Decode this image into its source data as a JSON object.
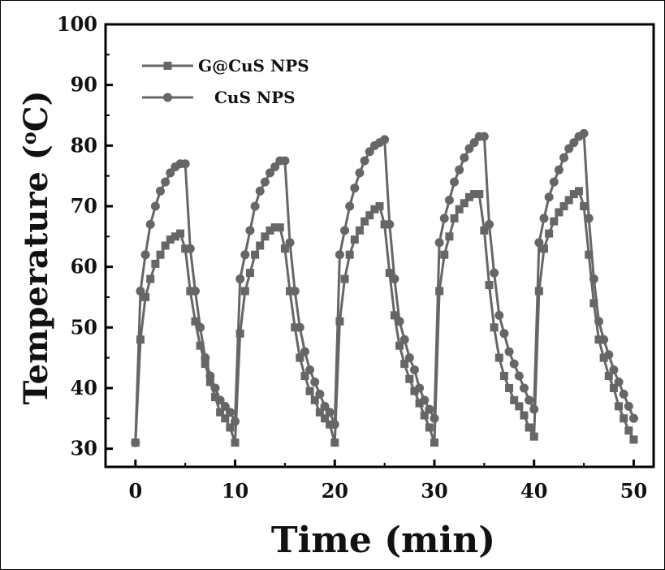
{
  "chart_data": {
    "type": "line",
    "title": "",
    "xlabel": "Time (min)",
    "ylabel_main": "Temperature (",
    "ylabel_sup": "o",
    "ylabel_tail": "C)",
    "xlim": [
      -3,
      52
    ],
    "ylim": [
      27,
      100
    ],
    "xticks": [
      0,
      10,
      20,
      30,
      40,
      50
    ],
    "yticks": [
      30,
      40,
      50,
      60,
      70,
      80,
      90,
      100
    ],
    "grid": false,
    "legend_position": "top-left",
    "series": [
      {
        "name": "G@CuS NPS",
        "marker": "square",
        "color": "#666666",
        "x": [
          0,
          0.5,
          1,
          1.5,
          2,
          2.5,
          3,
          3.5,
          4,
          4.5,
          5,
          5.5,
          6,
          6.5,
          7,
          7.5,
          8,
          8.5,
          9,
          9.5,
          10,
          10.5,
          11,
          11.5,
          12,
          12.5,
          13,
          13.5,
          14,
          14.5,
          15,
          15.5,
          16,
          16.5,
          17,
          17.5,
          18,
          18.5,
          19,
          19.5,
          20,
          20.5,
          21,
          21.5,
          22,
          22.5,
          23,
          23.5,
          24,
          24.5,
          25,
          25.5,
          26,
          26.5,
          27,
          27.5,
          28,
          28.5,
          29,
          29.5,
          30,
          30.5,
          31,
          31.5,
          32,
          32.5,
          33,
          33.5,
          34,
          34.5,
          35,
          35.5,
          36,
          36.5,
          37,
          37.5,
          38,
          38.5,
          39,
          39.5,
          40,
          40.5,
          41,
          41.5,
          42,
          42.5,
          43,
          43.5,
          44,
          44.5,
          45,
          45.5,
          46,
          46.5,
          47,
          47.5,
          48,
          48.5,
          49,
          49.5,
          50
        ],
        "y": [
          31,
          48,
          55,
          58,
          60.5,
          62,
          63.5,
          64.5,
          65,
          65.5,
          63,
          56,
          51,
          47,
          44,
          41,
          38.5,
          36,
          35,
          33.5,
          31,
          49,
          56,
          59,
          62,
          63.5,
          65,
          66,
          66.5,
          66.5,
          63,
          56,
          50,
          45,
          42,
          39.5,
          38,
          36,
          35,
          34,
          31,
          51,
          58,
          62,
          64.5,
          66,
          67.5,
          68.5,
          69.5,
          70,
          67,
          59,
          52,
          47,
          44,
          41.5,
          39.5,
          37.5,
          35.5,
          33.5,
          31,
          56,
          62,
          65,
          68,
          69.5,
          70.5,
          71.5,
          72,
          72,
          66,
          57,
          50,
          45,
          42,
          40,
          38,
          37,
          35.5,
          33.5,
          32,
          56,
          63,
          65.5,
          67.5,
          69,
          70,
          71,
          72,
          72.5,
          70,
          62,
          54,
          48,
          45,
          42,
          40,
          37,
          35,
          33,
          31.5
        ]
      },
      {
        "name": "CuS NPS",
        "marker": "circle",
        "color": "#666666",
        "x": [
          0,
          0.5,
          1,
          1.5,
          2,
          2.5,
          3,
          3.5,
          4,
          4.5,
          5,
          5.5,
          6,
          6.5,
          7,
          7.5,
          8,
          8.5,
          9,
          9.5,
          10,
          10.5,
          11,
          11.5,
          12,
          12.5,
          13,
          13.5,
          14,
          14.5,
          15,
          15.5,
          16,
          16.5,
          17,
          17.5,
          18,
          18.5,
          19,
          19.5,
          20,
          20.5,
          21,
          21.5,
          22,
          22.5,
          23,
          23.5,
          24,
          24.5,
          25,
          25.5,
          26,
          26.5,
          27,
          27.5,
          28,
          28.5,
          29,
          29.5,
          30,
          30.5,
          31,
          31.5,
          32,
          32.5,
          33,
          33.5,
          34,
          34.5,
          35,
          35.5,
          36,
          36.5,
          37,
          37.5,
          38,
          38.5,
          39,
          39.5,
          40,
          40.5,
          41,
          41.5,
          42,
          42.5,
          43,
          43.5,
          44,
          44.5,
          45,
          45.5,
          46,
          46.5,
          47,
          47.5,
          48,
          48.5,
          49,
          49.5,
          50
        ],
        "y": [
          31,
          56,
          62,
          67,
          70,
          72.5,
          74,
          75.5,
          76.5,
          77,
          77,
          63,
          56,
          50,
          45,
          42,
          40,
          38,
          37,
          36,
          34.5,
          58,
          62,
          66,
          70,
          72.5,
          74,
          75.5,
          76.5,
          77.5,
          77.5,
          64,
          56,
          50,
          46,
          43,
          41,
          39,
          37,
          36,
          34,
          62,
          66,
          70,
          73,
          75.5,
          77.5,
          79,
          80,
          80.5,
          81,
          67,
          58,
          51,
          48,
          45,
          43,
          40,
          38,
          36.5,
          35,
          64,
          68,
          71,
          74,
          76,
          78,
          79.5,
          80.5,
          81.5,
          81.5,
          67,
          59,
          52,
          49,
          46,
          44,
          42,
          40,
          38,
          36.5,
          64,
          68,
          71.5,
          74,
          76,
          78,
          79.5,
          80.5,
          81.5,
          82,
          68,
          58,
          51,
          48,
          45.5,
          43,
          41,
          39,
          37,
          35
        ]
      }
    ]
  }
}
